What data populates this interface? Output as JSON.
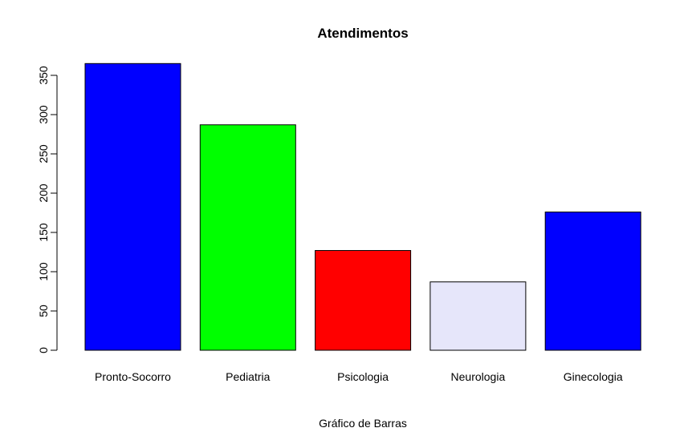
{
  "chart_data": {
    "type": "bar",
    "title": "Atendimentos",
    "xlabel": "Gráfico de Barras",
    "ylabel": "",
    "categories": [
      "Pronto-Socorro",
      "Pediatria",
      "Psicologia",
      "Neurologia",
      "Ginecologia"
    ],
    "values": [
      365,
      287,
      127,
      87,
      176
    ],
    "colors": [
      "#0000FF",
      "#00FF00",
      "#FF0000",
      "#E6E6FA",
      "#0000FF"
    ],
    "ylim": [
      0,
      350
    ],
    "yticks": [
      0,
      50,
      100,
      150,
      200,
      250,
      300,
      350
    ],
    "grid": false,
    "legend": "none"
  }
}
